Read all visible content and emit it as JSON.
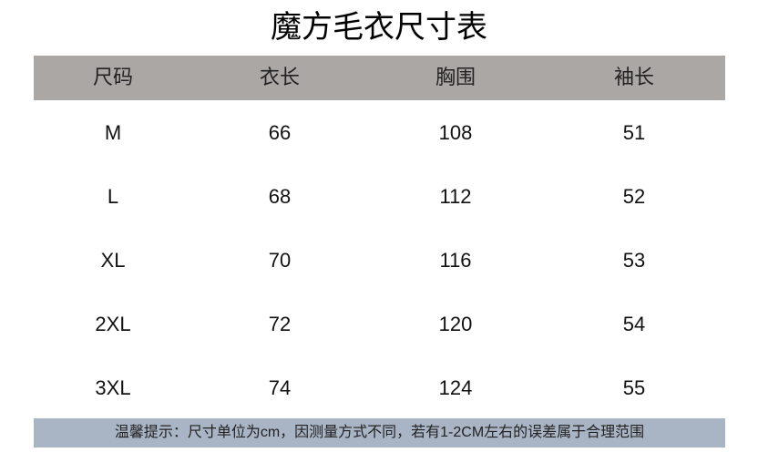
{
  "title": "魔方毛衣尺寸表",
  "colors": {
    "header_bg": "#aba7a5",
    "footer_bg": "#a9b4c5"
  },
  "table": {
    "headers": [
      "尺码",
      "衣长",
      "胸围",
      "袖长"
    ],
    "rows": [
      [
        "M",
        "66",
        "108",
        "51"
      ],
      [
        "L",
        "68",
        "112",
        "52"
      ],
      [
        "XL",
        "70",
        "116",
        "53"
      ],
      [
        "2XL",
        "72",
        "120",
        "54"
      ],
      [
        "3XL",
        "74",
        "124",
        "55"
      ]
    ]
  },
  "footer": {
    "note": "温馨提示：尺寸单位为cm，因测量方式不同，若有1-2CM左右的误差属于合理范围"
  }
}
